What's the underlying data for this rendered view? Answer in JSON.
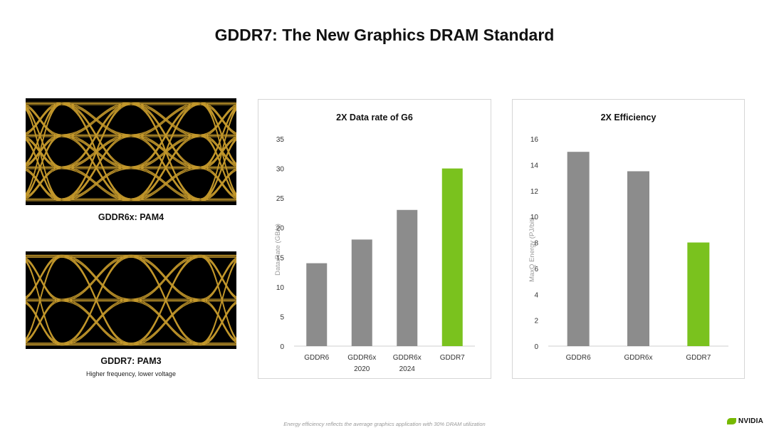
{
  "slide": {
    "title": "GDDR7: The New Graphics DRAM Standard",
    "footnote": "Energy efficiency reflects the average graphics application with 30% DRAM utilization",
    "logo_text": "NVIDIA"
  },
  "eye_diagrams": [
    {
      "caption": "GDDR6x: PAM4",
      "subcaption": "",
      "levels": 4,
      "color": "#d8a830"
    },
    {
      "caption": "GDDR7: PAM3",
      "subcaption": "Higher frequency, lower voltage",
      "levels": 3,
      "color": "#d8a830"
    }
  ],
  "colors": {
    "gray_bar": "#8c8c8c",
    "green_bar": "#7ac21e",
    "accent": "#76b900"
  },
  "chart_data": [
    {
      "type": "bar",
      "title": "2X Data rate of G6",
      "ylabel": "Data Rate (GB/s)",
      "xlabel": "",
      "categories": [
        "GDDR6",
        "GDDR6x\n2020",
        "GDDR6x\n2024",
        "GDDR7"
      ],
      "values": [
        14,
        18,
        23,
        30
      ],
      "bar_colors": [
        "#8c8c8c",
        "#8c8c8c",
        "#8c8c8c",
        "#7ac21e"
      ],
      "ylim": [
        0,
        35
      ],
      "yticks": [
        0,
        5,
        10,
        15,
        20,
        25,
        30,
        35
      ],
      "grid": false
    },
    {
      "type": "bar",
      "title": "2X Efficiency",
      "ylabel": "MaxQ Energy (PJ/bit)",
      "xlabel": "",
      "categories": [
        "GDDR6",
        "GDDR6x",
        "GDDR7"
      ],
      "values": [
        15,
        13.5,
        8
      ],
      "bar_colors": [
        "#8c8c8c",
        "#8c8c8c",
        "#7ac21e"
      ],
      "ylim": [
        0,
        16
      ],
      "yticks": [
        0,
        2,
        4,
        6,
        8,
        10,
        12,
        14,
        16
      ],
      "grid": false
    }
  ]
}
